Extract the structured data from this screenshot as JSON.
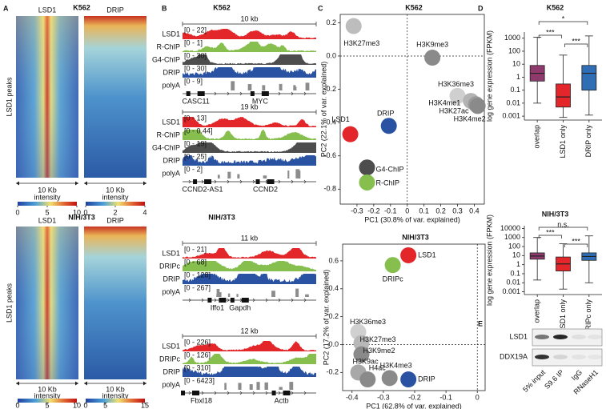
{
  "panels": {
    "A": {
      "label": "A",
      "groups": [
        {
          "title": "K562",
          "ylabel": "LSD1 peaks",
          "heatmaps": [
            {
              "name": "LSD1",
              "width_label": "10 Kb",
              "scale_label": "intensity",
              "scale": {
                "lim": [
                  0,
                  10
                ],
                "ticks": [
                  0,
                  5,
                  10
                ]
              }
            },
            {
              "name": "DRIP",
              "width_label": "10 Kb",
              "scale_label": "intensity",
              "scale": {
                "lim": [
                  0,
                  4
                ],
                "ticks": [
                  0,
                  2,
                  4
                ]
              }
            }
          ]
        },
        {
          "title": "NIH/3T3",
          "ylabel": "LSD1 peaks",
          "heatmaps": [
            {
              "name": "LSD1",
              "width_label": "10 Kb",
              "scale_label": "intensity",
              "scale": {
                "lim": [
                  0,
                  10
                ],
                "ticks": [
                  0,
                  5,
                  10
                ]
              }
            },
            {
              "name": "DRIP",
              "width_label": "10 Kb",
              "scale_label": "intensity",
              "scale": {
                "lim": [
                  0,
                  15
                ],
                "ticks": [
                  0,
                  5,
                  15
                ]
              }
            }
          ]
        }
      ]
    },
    "B": {
      "label": "B",
      "groups": [
        {
          "title": "K562",
          "loci": [
            {
              "span": "10 kb",
              "tracks": [
                {
                  "name": "LSD1",
                  "range": "[0 - 22]",
                  "color": "#e3262a"
                },
                {
                  "name": "R-ChIP",
                  "range": "[0 - 1]",
                  "color": "#86bf4e"
                },
                {
                  "name": "G4-ChIP",
                  "range": "[0 - 30]",
                  "color": "#4d4d4d"
                },
                {
                  "name": "DRIP",
                  "range": "[0 - 30]",
                  "color": "#2a52a3"
                },
                {
                  "name": "polyA",
                  "range": "[0 - 9]",
                  "color": "#8c8c8c"
                }
              ],
              "genes": [
                "CASC11",
                "MYC"
              ]
            },
            {
              "span": "19 kb",
              "tracks": [
                {
                  "name": "LSD1",
                  "range": "[0 - 13]",
                  "color": "#e3262a"
                },
                {
                  "name": "R-ChIP",
                  "range": "[0 - 0.44]",
                  "color": "#86bf4e"
                },
                {
                  "name": "G4-ChIP",
                  "range": "[0 - 19]",
                  "color": "#4d4d4d"
                },
                {
                  "name": "DRIP",
                  "range": "[0 - 25]",
                  "color": "#2a52a3"
                },
                {
                  "name": "polyA",
                  "range": "[0 - 2]",
                  "color": "#8c8c8c"
                }
              ],
              "genes": [
                "CCND2-AS1",
                "CCND2"
              ]
            }
          ]
        },
        {
          "title": "NIH/3T3",
          "loci": [
            {
              "span": "11 kb",
              "tracks": [
                {
                  "name": "LSD1",
                  "range": "[0 - 21]",
                  "color": "#e3262a"
                },
                {
                  "name": "DRIPc",
                  "range": "[0 - 68]",
                  "color": "#86bf4e"
                },
                {
                  "name": "DRIP",
                  "range": "[0 - 128]",
                  "color": "#2a52a3"
                },
                {
                  "name": "polyA",
                  "range": "[0 - 267]",
                  "color": "#8c8c8c"
                }
              ],
              "genes": [
                "Iffo1",
                "Gapdh"
              ]
            },
            {
              "span": "12 kb",
              "tracks": [
                {
                  "name": "LSD1",
                  "range": "[0 - 226]",
                  "color": "#e3262a"
                },
                {
                  "name": "DRIPc",
                  "range": "[0 - 126]",
                  "color": "#86bf4e"
                },
                {
                  "name": "DRIP",
                  "range": "[0 - 310]",
                  "color": "#2a52a3"
                },
                {
                  "name": "polyA",
                  "range": "[0 - 6423]",
                  "color": "#8c8c8c"
                }
              ],
              "genes": [
                "Fbxl18",
                "Actb"
              ]
            }
          ]
        }
      ]
    },
    "C": {
      "label": "C"
    },
    "D": {
      "label": "D"
    },
    "E": {
      "label": "E",
      "rows": [
        "LSD1",
        "DDX19A"
      ],
      "lanes": [
        "5% input",
        "S9.6 IP",
        "IgG",
        "RNaseH1"
      ]
    }
  },
  "chart_data": [
    {
      "type": "scatter",
      "title": "K562",
      "xlabel": "PC1 (30.8% of var. explained)",
      "ylabel": "PC2 (22.1% of var. explained)",
      "labels": [
        "H3K27me3",
        "H3K9me3",
        "H3K36me3",
        "H3K4me1",
        "H3K27ac",
        "H3K4me2",
        "LSD1",
        "DRIP",
        "G4-ChIP",
        "R-ChIP"
      ],
      "x": [
        -0.32,
        0.15,
        0.3,
        0.38,
        0.41,
        0.42,
        -0.34,
        -0.11,
        -0.24,
        -0.24
      ],
      "y": [
        0.18,
        -0.01,
        -0.24,
        -0.27,
        -0.29,
        -0.3,
        -0.47,
        -0.42,
        -0.67,
        -0.76
      ],
      "colors": [
        "#bdbdbd",
        "#8a8a8a",
        "#cfcfcf",
        "#b3b3b3",
        "#9a9a9a",
        "#8a8a8a",
        "#e3262a",
        "#2a52a3",
        "#4d4d4d",
        "#86bf4e"
      ],
      "xlim": [
        -0.4,
        0.46
      ],
      "ylim": [
        -0.89,
        0.25
      ],
      "xticks": [
        -0.3,
        -0.2,
        -0.1,
        0,
        0.1,
        0.2,
        0.3,
        0.4
      ],
      "yticks": [
        0.2,
        {
          "value": 0,
          "label": "0.0"
        },
        -0.2,
        -0.4,
        -0.6,
        -0.8
      ],
      "zero_lines": true
    },
    {
      "type": "scatter",
      "title": "NIH/3T3",
      "xlabel": "PC1 (62.8% of var. explained)",
      "ylabel": "PC2 (17.2% of var. explained)",
      "labels": [
        "LSD1",
        "DRIPc",
        "H3K36me3",
        "H3K27me3",
        "H3K9me2",
        "H3K9ac",
        "H4ac",
        "H3K4me3",
        "DRIP"
      ],
      "x": [
        -0.22,
        -0.27,
        -0.38,
        -0.37,
        -0.37,
        -0.38,
        -0.35,
        -0.28,
        -0.22
      ],
      "y": [
        0.64,
        0.57,
        0.09,
        0.01,
        -0.07,
        -0.2,
        -0.25,
        -0.24,
        -0.25
      ],
      "colors": [
        "#e3262a",
        "#86bf4e",
        "#d0d0d0",
        "#b8b8b8",
        "#8a8a8a",
        "#a8a8a8",
        "#8a8a8a",
        "#8a8a8a",
        "#2a52a3"
      ],
      "xlim": [
        -0.43,
        0.025
      ],
      "ylim": [
        -0.33,
        0.72
      ],
      "xticks": [
        -0.4,
        -0.3,
        -0.2,
        -0.1,
        0
      ],
      "yticks": [
        0.6,
        0.4,
        0.2,
        {
          "value": 0,
          "label": "0.0"
        },
        -0.2
      ],
      "zero_lines": true
    },
    {
      "type": "box",
      "title": "K562",
      "ylabel": "log gene expression (FPKM)",
      "categories": [
        "overlap",
        "LSD1 only",
        "DRIP only"
      ],
      "colors": [
        "#8e3a6c",
        "#e3262a",
        "#2f6db5"
      ],
      "low": [
        0.01,
        0.0008,
        0.0012
      ],
      "q1": [
        0.5,
        0.005,
        0.1
      ],
      "median": [
        2,
        0.03,
        2
      ],
      "q3": [
        8,
        0.3,
        8
      ],
      "high": [
        1200,
        50,
        1500
      ],
      "ylim": [
        0.0005,
        3000
      ],
      "yticks": [
        0.001,
        0.01,
        0.1,
        1,
        10,
        100,
        1000
      ],
      "log_scale": true,
      "significance": [
        {
          "between": [
            "overlap",
            "LSD1 only"
          ],
          "label": "***"
        },
        {
          "between": [
            "overlap",
            "DRIP only"
          ],
          "label": "*"
        },
        {
          "between": [
            "LSD1 only",
            "DRIP only"
          ],
          "label": "***"
        }
      ]
    },
    {
      "type": "box",
      "title": "NIH/3T3",
      "ylabel": "log gene expression (FPKM)",
      "categories": [
        "overlap",
        "LSD1 only",
        "DRIPc only"
      ],
      "colors": [
        "#8e3a6c",
        "#e3262a",
        "#2f6db5"
      ],
      "low": [
        0.02,
        0.002,
        0.01
      ],
      "q1": [
        4,
        0.2,
        3
      ],
      "median": [
        9,
        1.2,
        8
      ],
      "q3": [
        20,
        7,
        20
      ],
      "high": [
        1000,
        200,
        1500
      ],
      "ylim": [
        0.0005,
        20000
      ],
      "yticks": [
        0.001,
        0.01,
        0.1,
        1,
        10,
        100,
        1000,
        10000
      ],
      "log_scale": true,
      "significance": [
        {
          "between": [
            "overlap",
            "LSD1 only"
          ],
          "label": "***"
        },
        {
          "between": [
            "overlap",
            "DRIPc only"
          ],
          "label": "n.s."
        },
        {
          "between": [
            "LSD1 only",
            "DRIPc only"
          ],
          "label": "***"
        }
      ]
    }
  ]
}
